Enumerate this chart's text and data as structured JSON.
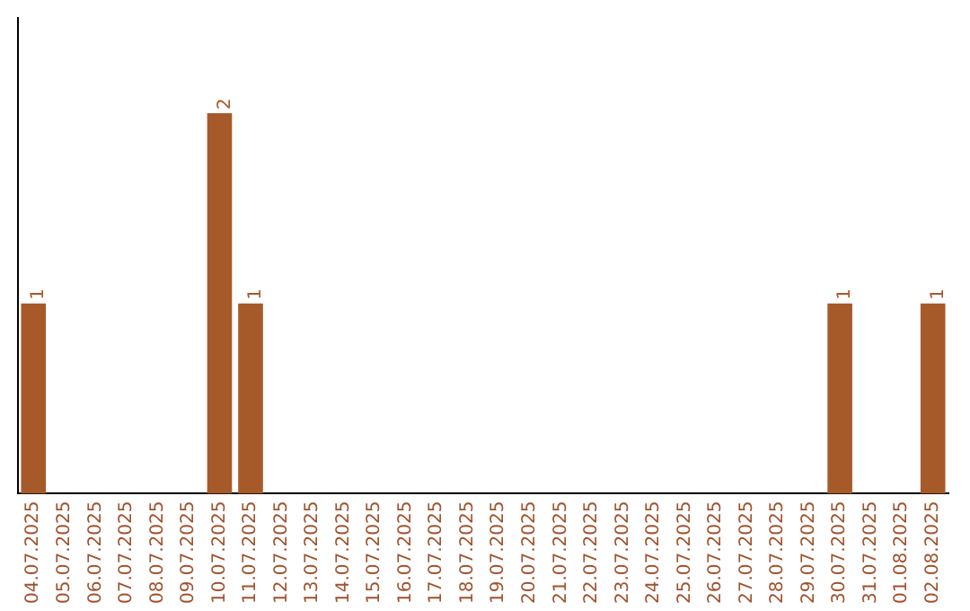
{
  "chart_data": {
    "type": "bar",
    "categories": [
      "04.07.2025",
      "05.07.2025",
      "06.07.2025",
      "07.07.2025",
      "08.07.2025",
      "09.07.2025",
      "10.07.2025",
      "11.07.2025",
      "12.07.2025",
      "13.07.2025",
      "14.07.2025",
      "15.07.2025",
      "16.07.2025",
      "17.07.2025",
      "18.07.2025",
      "19.07.2025",
      "20.07.2025",
      "21.07.2025",
      "22.07.2025",
      "23.07.2025",
      "24.07.2025",
      "25.07.2025",
      "26.07.2025",
      "27.07.2025",
      "28.07.2025",
      "29.07.2025",
      "30.07.2025",
      "31.07.2025",
      "01.08.2025",
      "02.08.2025"
    ],
    "values": [
      1,
      0,
      0,
      0,
      0,
      0,
      2,
      1,
      0,
      0,
      0,
      0,
      0,
      0,
      0,
      0,
      0,
      0,
      0,
      0,
      0,
      0,
      0,
      0,
      0,
      0,
      1,
      0,
      0,
      1
    ],
    "value_labels": [
      "1",
      null,
      null,
      null,
      null,
      null,
      "2",
      "1",
      null,
      null,
      null,
      null,
      null,
      null,
      null,
      null,
      null,
      null,
      null,
      null,
      null,
      null,
      null,
      null,
      null,
      null,
      "1",
      null,
      null,
      "1"
    ],
    "color": "#a65a2a",
    "grid": false,
    "legend": false,
    "tick_labels": "x"
  }
}
